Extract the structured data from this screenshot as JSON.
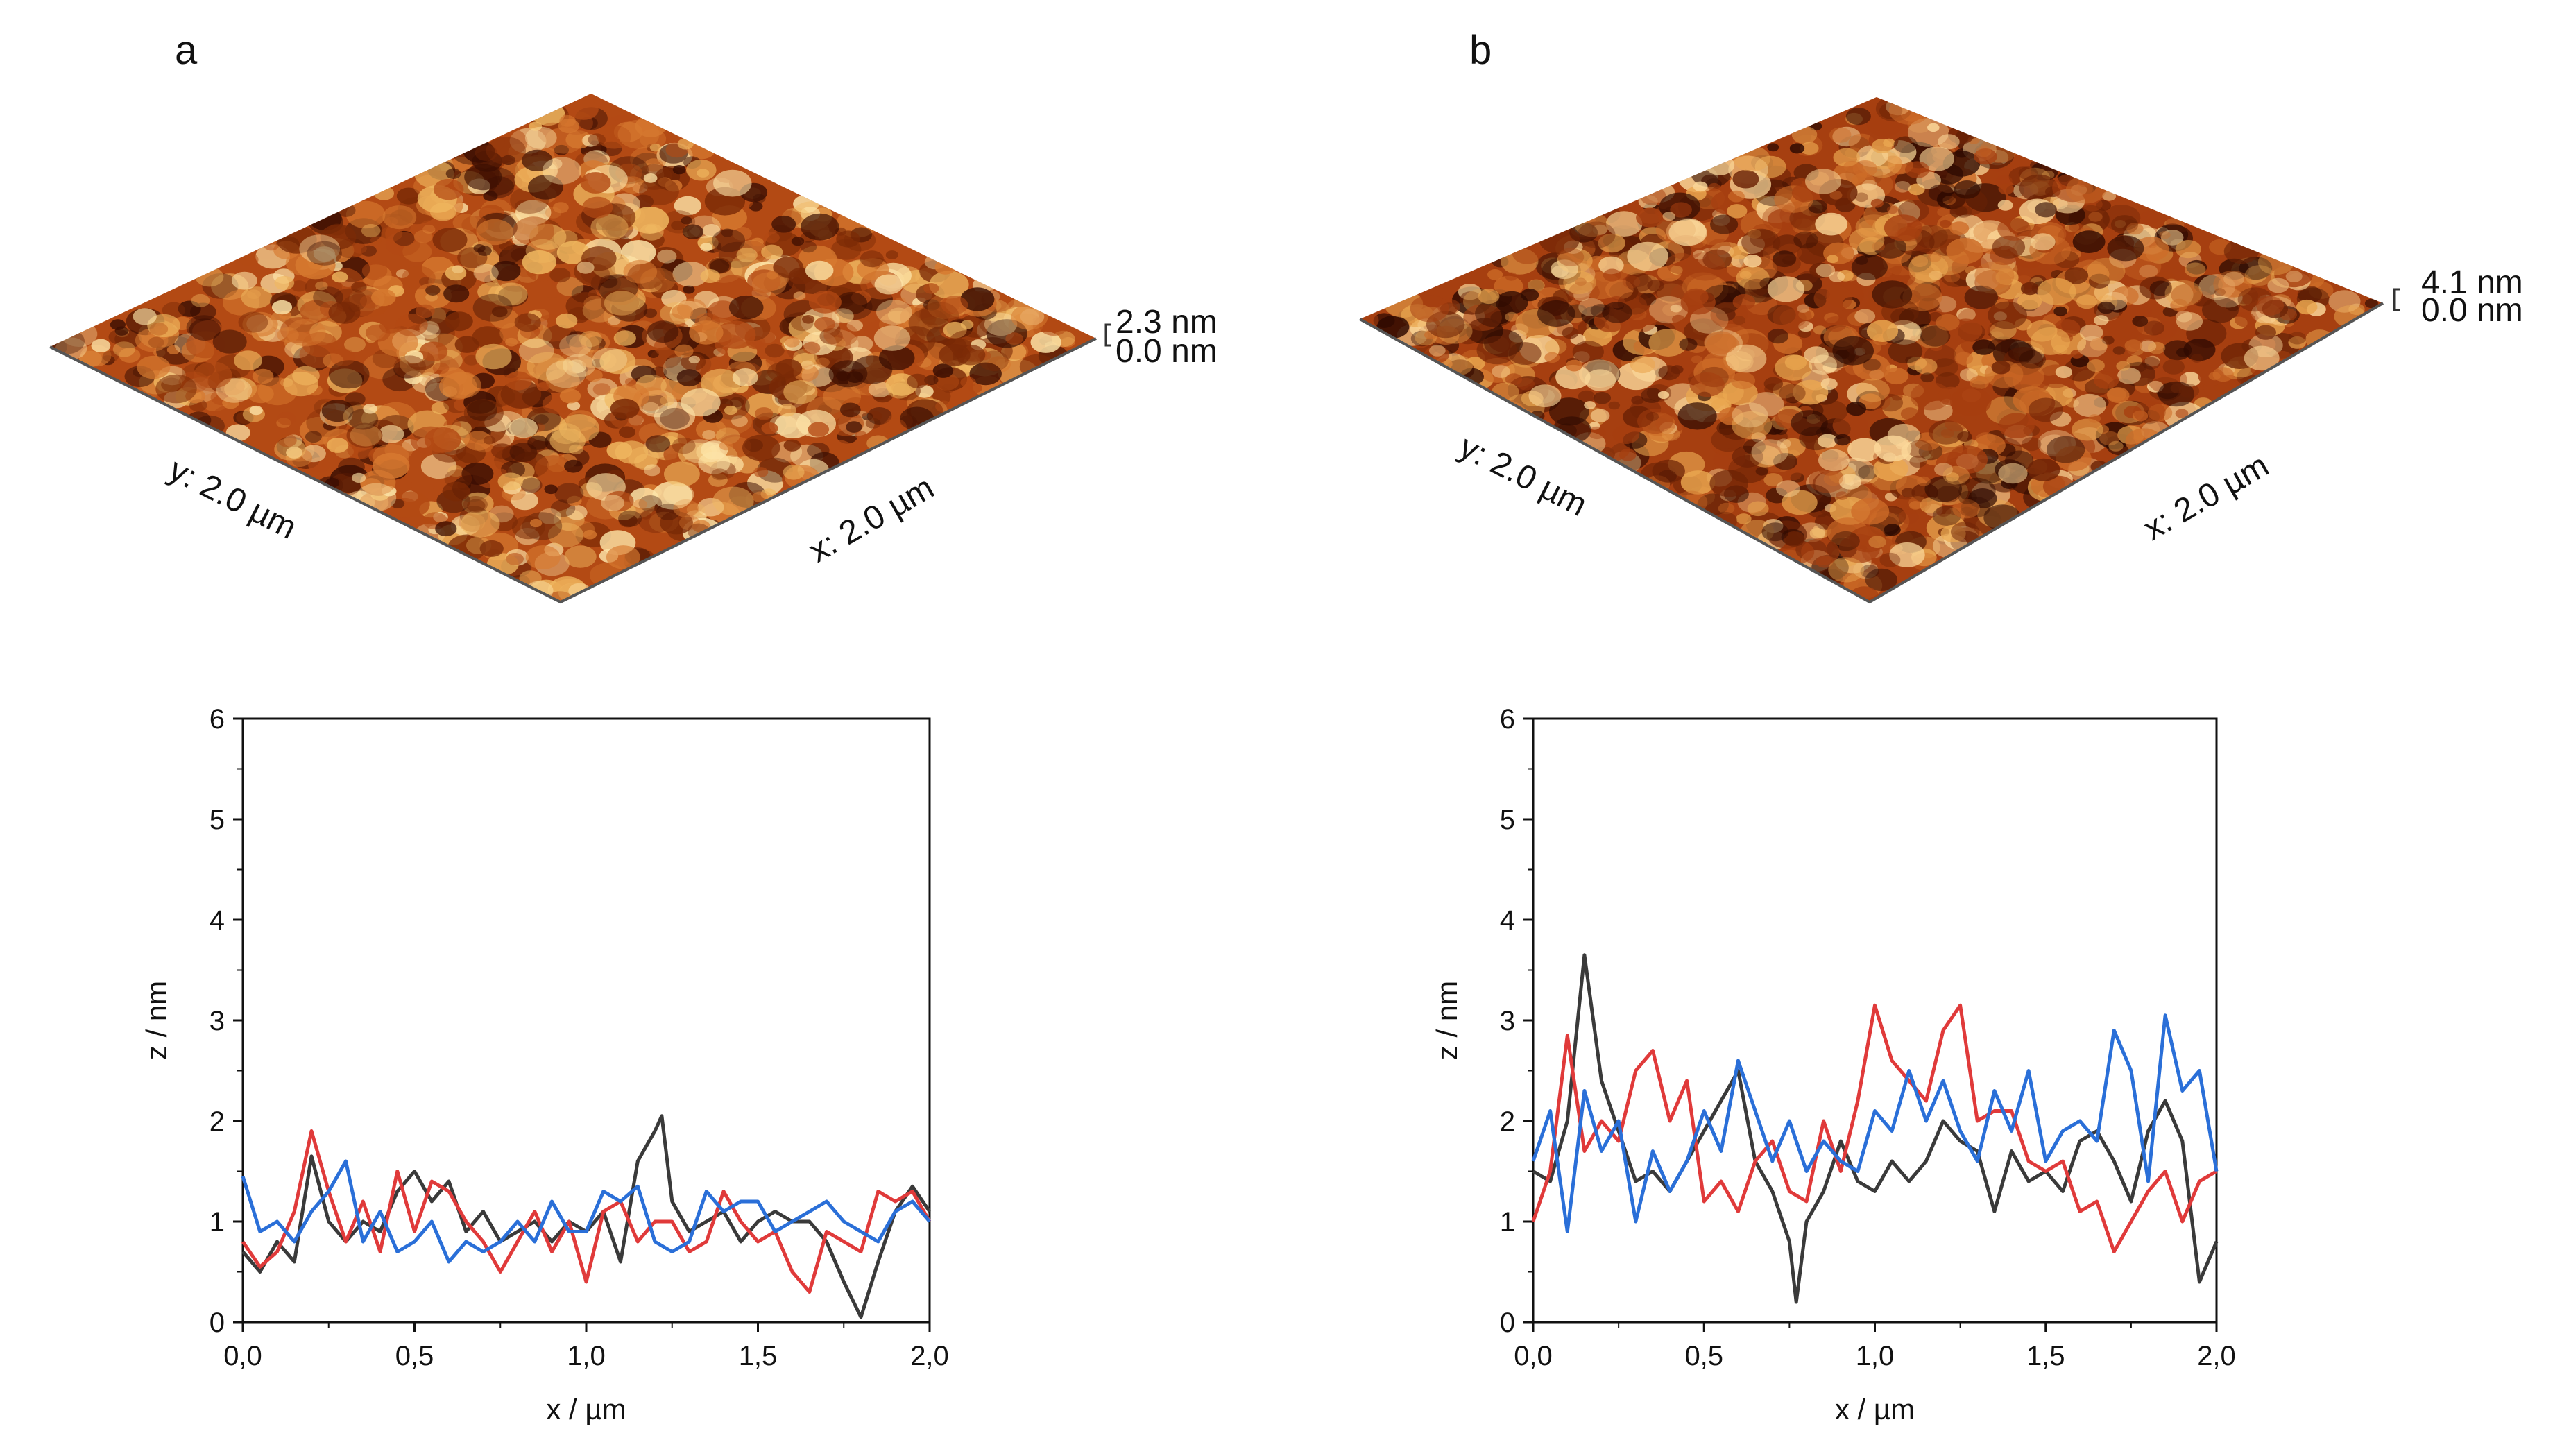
{
  "panels": [
    {
      "letter": "a",
      "afm": {
        "scan_x": "x: 2.0 µm",
        "scan_y": "y: 2.0 µm",
        "z_max": "2.3 nm",
        "z_min": "0.0 nm",
        "colors": [
          "#3a0e02",
          "#7a2a06",
          "#b34a14",
          "#d77a30",
          "#f0b860",
          "#fde4a8"
        ]
      },
      "profile_title": ""
    },
    {
      "letter": "b",
      "afm": {
        "scan_x": "x: 2.0 µm",
        "scan_y": "y: 2.0 µm",
        "z_max": "4.1 nm",
        "z_min": "0.0 nm",
        "colors": [
          "#2e0a01",
          "#6b2205",
          "#a63f10",
          "#cd6c28",
          "#eaa750",
          "#fbd89a"
        ]
      },
      "profile_title": ""
    }
  ],
  "chart_data": [
    {
      "type": "line",
      "xlabel": "x / µm",
      "ylabel": "z / nm",
      "xlim": [
        0,
        2.0
      ],
      "ylim": [
        0,
        6
      ],
      "xticks": [
        "0,0",
        "0,5",
        "1,0",
        "1,5",
        "2,0"
      ],
      "yticks": [
        "0",
        "1",
        "2",
        "3",
        "4",
        "5",
        "6"
      ],
      "grid": false,
      "series": [
        {
          "color": "#3a3a3a",
          "x": [
            0.0,
            0.05,
            0.1,
            0.15,
            0.2,
            0.25,
            0.3,
            0.35,
            0.4,
            0.45,
            0.5,
            0.55,
            0.6,
            0.65,
            0.7,
            0.75,
            0.8,
            0.85,
            0.9,
            0.95,
            1.0,
            1.05,
            1.1,
            1.15,
            1.2,
            1.22,
            1.25,
            1.3,
            1.35,
            1.4,
            1.45,
            1.5,
            1.55,
            1.6,
            1.65,
            1.7,
            1.75,
            1.8,
            1.85,
            1.9,
            1.95,
            2.0
          ],
          "y": [
            0.7,
            0.5,
            0.8,
            0.6,
            1.65,
            1.0,
            0.8,
            1.0,
            0.9,
            1.3,
            1.5,
            1.2,
            1.4,
            0.9,
            1.1,
            0.8,
            0.9,
            1.0,
            0.8,
            1.0,
            0.9,
            1.1,
            0.6,
            1.6,
            1.9,
            2.05,
            1.2,
            0.9,
            1.0,
            1.1,
            0.8,
            1.0,
            1.1,
            1.0,
            1.0,
            0.8,
            0.4,
            0.05,
            0.6,
            1.1,
            1.35,
            1.1
          ]
        },
        {
          "color": "#e03a3a",
          "x": [
            0.0,
            0.05,
            0.1,
            0.15,
            0.2,
            0.25,
            0.3,
            0.35,
            0.4,
            0.45,
            0.5,
            0.55,
            0.6,
            0.65,
            0.7,
            0.75,
            0.8,
            0.85,
            0.9,
            0.95,
            1.0,
            1.05,
            1.1,
            1.15,
            1.2,
            1.25,
            1.3,
            1.35,
            1.4,
            1.45,
            1.5,
            1.55,
            1.6,
            1.65,
            1.7,
            1.75,
            1.8,
            1.85,
            1.9,
            1.95,
            2.0
          ],
          "y": [
            0.8,
            0.55,
            0.7,
            1.1,
            1.9,
            1.3,
            0.8,
            1.2,
            0.7,
            1.5,
            0.9,
            1.4,
            1.3,
            1.0,
            0.8,
            0.5,
            0.8,
            1.1,
            0.7,
            1.0,
            0.4,
            1.1,
            1.2,
            0.8,
            1.0,
            1.0,
            0.7,
            0.8,
            1.3,
            1.0,
            0.8,
            0.9,
            0.5,
            0.3,
            0.9,
            0.8,
            0.7,
            1.3,
            1.2,
            1.3,
            1.0
          ]
        },
        {
          "color": "#2a6fd8",
          "x": [
            0.0,
            0.05,
            0.1,
            0.15,
            0.2,
            0.25,
            0.3,
            0.35,
            0.4,
            0.45,
            0.5,
            0.55,
            0.6,
            0.65,
            0.7,
            0.75,
            0.8,
            0.85,
            0.9,
            0.95,
            1.0,
            1.05,
            1.1,
            1.15,
            1.2,
            1.25,
            1.3,
            1.35,
            1.4,
            1.45,
            1.5,
            1.55,
            1.6,
            1.65,
            1.7,
            1.75,
            1.8,
            1.85,
            1.9,
            1.95,
            2.0
          ],
          "y": [
            1.45,
            0.9,
            1.0,
            0.8,
            1.1,
            1.3,
            1.6,
            0.8,
            1.1,
            0.7,
            0.8,
            1.0,
            0.6,
            0.8,
            0.7,
            0.8,
            1.0,
            0.8,
            1.2,
            0.9,
            0.9,
            1.3,
            1.2,
            1.35,
            0.8,
            0.7,
            0.8,
            1.3,
            1.1,
            1.2,
            1.2,
            0.9,
            1.0,
            1.1,
            1.2,
            1.0,
            0.9,
            0.8,
            1.1,
            1.2,
            1.0
          ]
        }
      ]
    },
    {
      "type": "line",
      "xlabel": "x / µm",
      "ylabel": "z / nm",
      "xlim": [
        0,
        2.0
      ],
      "ylim": [
        0,
        6
      ],
      "xticks": [
        "0,0",
        "0,5",
        "1,0",
        "1,5",
        "2,0"
      ],
      "yticks": [
        "0",
        "1",
        "2",
        "3",
        "4",
        "5",
        "6"
      ],
      "grid": false,
      "series": [
        {
          "color": "#3a3a3a",
          "x": [
            0.0,
            0.05,
            0.1,
            0.15,
            0.2,
            0.25,
            0.3,
            0.35,
            0.4,
            0.45,
            0.5,
            0.55,
            0.6,
            0.65,
            0.7,
            0.75,
            0.77,
            0.8,
            0.85,
            0.9,
            0.95,
            1.0,
            1.05,
            1.1,
            1.15,
            1.2,
            1.25,
            1.3,
            1.35,
            1.4,
            1.45,
            1.5,
            1.55,
            1.6,
            1.65,
            1.7,
            1.75,
            1.8,
            1.85,
            1.9,
            1.95,
            2.0
          ],
          "y": [
            1.5,
            1.4,
            2.0,
            3.65,
            2.4,
            1.9,
            1.4,
            1.5,
            1.3,
            1.6,
            1.9,
            2.2,
            2.5,
            1.6,
            1.3,
            0.8,
            0.2,
            1.0,
            1.3,
            1.8,
            1.4,
            1.3,
            1.6,
            1.4,
            1.6,
            2.0,
            1.8,
            1.7,
            1.1,
            1.7,
            1.4,
            1.5,
            1.3,
            1.8,
            1.9,
            1.6,
            1.2,
            1.9,
            2.2,
            1.8,
            0.4,
            0.8
          ]
        },
        {
          "color": "#e03a3a",
          "x": [
            0.0,
            0.05,
            0.1,
            0.15,
            0.2,
            0.25,
            0.3,
            0.35,
            0.4,
            0.45,
            0.5,
            0.55,
            0.6,
            0.65,
            0.7,
            0.75,
            0.8,
            0.85,
            0.9,
            0.95,
            1.0,
            1.05,
            1.1,
            1.15,
            1.2,
            1.25,
            1.3,
            1.35,
            1.4,
            1.45,
            1.5,
            1.55,
            1.6,
            1.65,
            1.7,
            1.75,
            1.8,
            1.85,
            1.9,
            1.95,
            2.0
          ],
          "y": [
            1.0,
            1.5,
            2.85,
            1.7,
            2.0,
            1.8,
            2.5,
            2.7,
            2.0,
            2.4,
            1.2,
            1.4,
            1.1,
            1.6,
            1.8,
            1.3,
            1.2,
            2.0,
            1.5,
            2.2,
            3.15,
            2.6,
            2.4,
            2.2,
            2.9,
            3.15,
            2.0,
            2.1,
            2.1,
            1.6,
            1.5,
            1.6,
            1.1,
            1.2,
            0.7,
            1.0,
            1.3,
            1.5,
            1.0,
            1.4,
            1.5
          ]
        },
        {
          "color": "#2a6fd8",
          "x": [
            0.0,
            0.05,
            0.1,
            0.15,
            0.2,
            0.25,
            0.3,
            0.35,
            0.4,
            0.45,
            0.5,
            0.55,
            0.6,
            0.65,
            0.7,
            0.75,
            0.8,
            0.85,
            0.9,
            0.95,
            1.0,
            1.05,
            1.1,
            1.15,
            1.2,
            1.25,
            1.3,
            1.35,
            1.4,
            1.45,
            1.5,
            1.55,
            1.6,
            1.65,
            1.7,
            1.75,
            1.8,
            1.85,
            1.9,
            1.95,
            2.0
          ],
          "y": [
            1.6,
            2.1,
            0.9,
            2.3,
            1.7,
            2.0,
            1.0,
            1.7,
            1.3,
            1.6,
            2.1,
            1.7,
            2.6,
            2.1,
            1.6,
            2.0,
            1.5,
            1.8,
            1.6,
            1.5,
            2.1,
            1.9,
            2.5,
            2.0,
            2.4,
            1.9,
            1.6,
            2.3,
            1.9,
            2.5,
            1.6,
            1.9,
            2.0,
            1.8,
            2.9,
            2.5,
            1.4,
            3.05,
            2.3,
            2.5,
            1.5
          ]
        }
      ]
    }
  ]
}
